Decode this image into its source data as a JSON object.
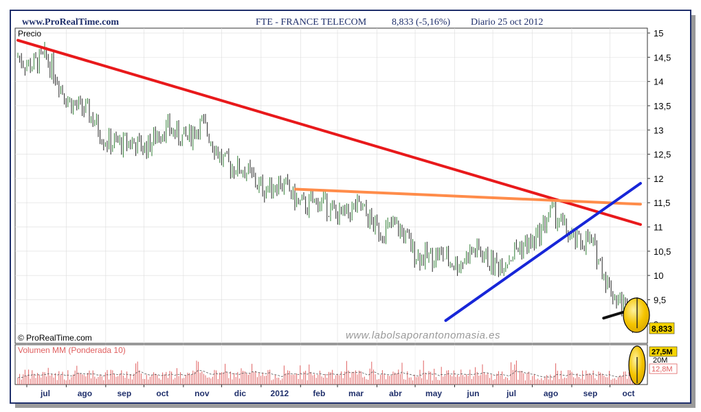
{
  "header": {
    "site": "www.ProRealTime.com",
    "title": "FTE - FRANCE TELECOM",
    "price_change": "8,833 (-5,16%)",
    "period_date": "Diario  25 oct 2012"
  },
  "price_panel": {
    "label": "Precio",
    "copyright": "© ProRealTime.com",
    "last_value_label": "8,833"
  },
  "volume_panel": {
    "label": "Volumen MM (Ponderada 10)",
    "max_label": "27,5M",
    "mid_label": "20M",
    "last_label": "12,8M"
  },
  "watermark": "www.labolsaporantonomasia.es",
  "colors": {
    "frame": "#1f2f6b",
    "up_candle": "#2e7d32",
    "down_candle": "#222222",
    "red_trend": "#e8191b",
    "orange_resistance": "#ff8c4a",
    "blue_support": "#1726d8",
    "black_support": "#111111",
    "highlight": "#f5c400",
    "volume": "#e06060"
  },
  "chart_data": {
    "type": "line",
    "title": "FTE - FRANCE TELECOM",
    "ylabel": "Precio",
    "ylim": [
      8.6,
      15.1
    ],
    "y_ticks": [
      9,
      9.5,
      10,
      10.5,
      11,
      11.5,
      12,
      12.5,
      13,
      13.5,
      14,
      14.5,
      15
    ],
    "y_tick_labels": [
      "9",
      "9,5",
      "10",
      "10,5",
      "11",
      "11,5",
      "12",
      "12,5",
      "13",
      "13,5",
      "14",
      "14,5",
      "15"
    ],
    "x_tick_labels": [
      "jul",
      "ago",
      "sep",
      "oct",
      "nov",
      "dic",
      "2012",
      "feb",
      "mar",
      "abr",
      "may",
      "jun",
      "jul",
      "ago",
      "sep",
      "oct"
    ],
    "x_tick_dates": [
      "2011-07",
      "2011-08",
      "2011-09",
      "2011-10",
      "2011-11",
      "2011-12",
      "2012-01",
      "2012-02",
      "2012-03",
      "2012-04",
      "2012-05",
      "2012-06",
      "2012-07",
      "2012-08",
      "2012-09",
      "2012-10"
    ],
    "last": 8.833,
    "change_pct": -5.16,
    "series": [
      {
        "values_by_month": [
          {
            "month": "2011-06",
            "close": 14.5
          },
          {
            "month": "2011-07",
            "close": 14.4
          },
          {
            "month": "2011-08",
            "close": 13.3
          },
          {
            "month": "2011-09",
            "close": 12.6
          },
          {
            "month": "2011-10",
            "close": 12.9
          },
          {
            "month": "2011-11",
            "close": 13.0
          },
          {
            "month": "2011-12",
            "close": 12.1
          },
          {
            "month": "2012-01",
            "close": 11.8
          },
          {
            "month": "2012-02",
            "close": 11.4
          },
          {
            "month": "2012-03",
            "close": 11.3
          },
          {
            "month": "2012-04",
            "close": 10.9
          },
          {
            "month": "2012-05",
            "close": 10.3
          },
          {
            "month": "2012-06",
            "close": 10.4
          },
          {
            "month": "2012-07",
            "close": 10.3
          },
          {
            "month": "2012-08",
            "close": 11.2
          },
          {
            "month": "2012-09",
            "close": 10.6
          },
          {
            "month": "2012-10",
            "close": 8.833
          }
        ]
      }
    ],
    "trendlines": [
      {
        "color": "red",
        "from": {
          "date": "2011-06-24",
          "price": 14.85
        },
        "to": {
          "date": "2012-10-25",
          "price": 11.05
        }
      },
      {
        "color": "orange",
        "from": {
          "date": "2012-01-28",
          "price": 11.78
        },
        "to": {
          "date": "2012-10-25",
          "price": 11.47
        }
      },
      {
        "color": "blue",
        "from": {
          "date": "2012-05-25",
          "price": 9.07
        },
        "to": {
          "date": "2012-10-25",
          "price": 11.9
        }
      },
      {
        "color": "black",
        "from": {
          "date": "2012-09-26",
          "price": 9.12
        },
        "to": {
          "date": "2012-10-25",
          "price": 9.35
        }
      }
    ],
    "volume": {
      "label": "Volumen MM (Ponderada 10)",
      "last": "12,8M",
      "ma": "27,5M"
    }
  }
}
